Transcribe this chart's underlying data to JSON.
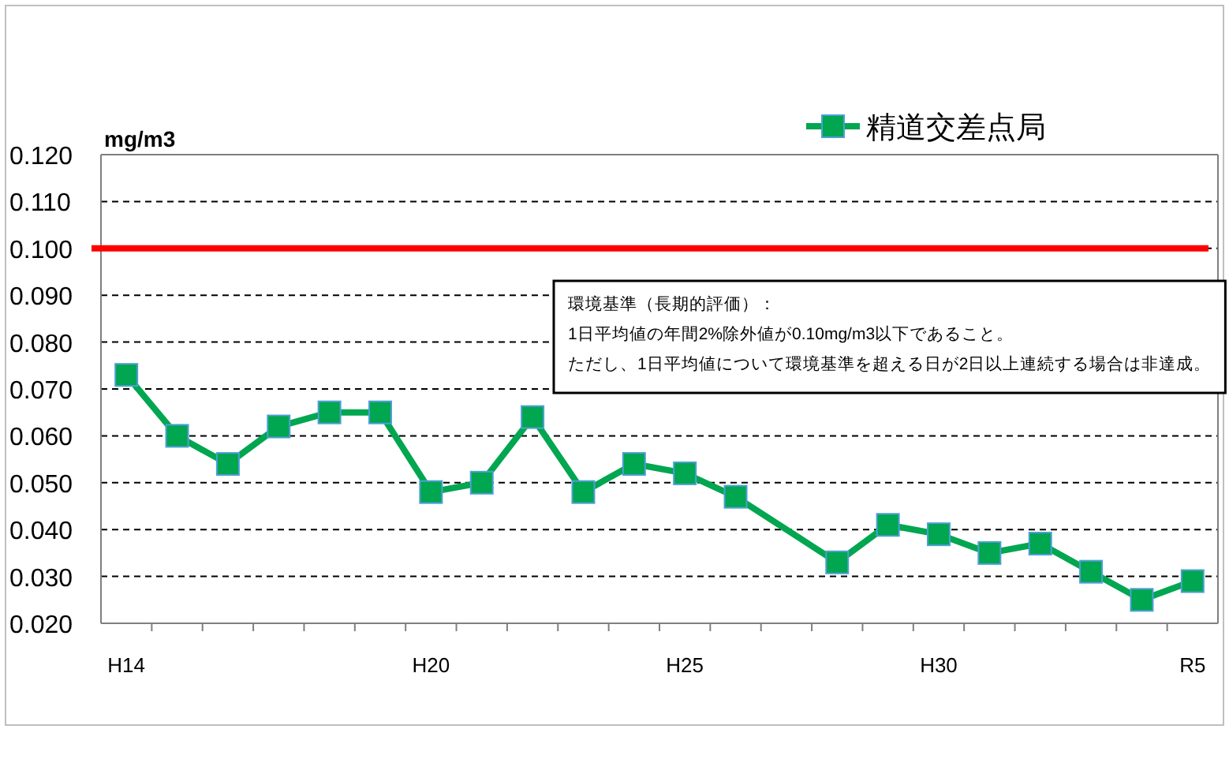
{
  "chart_data": {
    "type": "line",
    "ylabel": "mg/m3",
    "categories": [
      "H14",
      null,
      null,
      null,
      null,
      null,
      "H20",
      null,
      null,
      null,
      null,
      "H25",
      null,
      null,
      null,
      null,
      "H30",
      null,
      null,
      null,
      null,
      "R5"
    ],
    "series": [
      {
        "name": "精道交差点局",
        "color": "#00a650",
        "values": [
          0.073,
          0.06,
          0.054,
          0.062,
          0.065,
          0.065,
          0.048,
          0.05,
          0.064,
          0.048,
          0.054,
          0.052,
          0.047,
          null,
          0.033,
          0.041,
          0.039,
          0.035,
          0.037,
          0.031,
          0.025,
          0.029
        ]
      }
    ],
    "ylim": [
      0.02,
      0.12
    ],
    "yticks": [
      {
        "value": 0.02,
        "label": "0.020"
      },
      {
        "value": 0.03,
        "label": "0.030"
      },
      {
        "value": 0.04,
        "label": "0.040"
      },
      {
        "value": 0.05,
        "label": "0.050"
      },
      {
        "value": 0.06,
        "label": "0.060"
      },
      {
        "value": 0.07,
        "label": "0.070"
      },
      {
        "value": 0.08,
        "label": "0.080"
      },
      {
        "value": 0.09,
        "label": "0.090"
      },
      {
        "value": 0.1,
        "label": "0.100"
      },
      {
        "value": 0.11,
        "label": "0.110"
      },
      {
        "value": 0.12,
        "label": "0.120"
      }
    ],
    "grid": "y",
    "line_style": "solid",
    "marker": "square",
    "legend": "top right",
    "ref_lines": [
      {
        "axis": "y",
        "value": 0.1,
        "color": "#ff0000"
      }
    ],
    "annotations": [
      "環境基準（長期的評価）：",
      "1日平均値の年間2%除外値が0.10mg/m3以下であること。",
      "ただし、1日平均値について環境基準を超える日が2日以上連続する場合は非達成。"
    ]
  }
}
